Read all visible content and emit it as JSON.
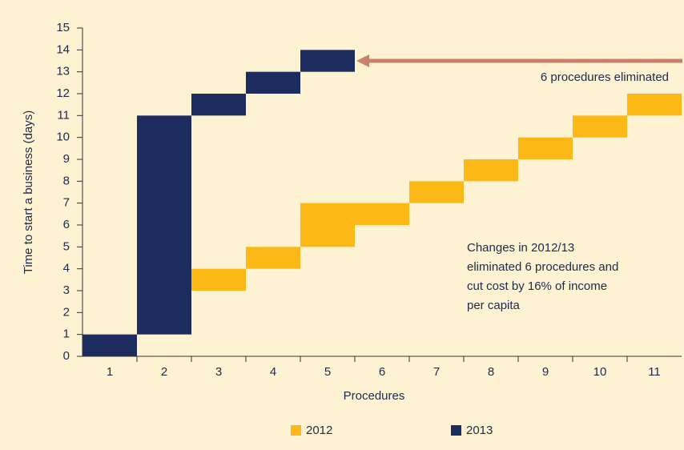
{
  "chart_data": {
    "type": "floating-bar",
    "ylabel": "Time to start a business (days)",
    "xlabel": "Procedures",
    "categories": [
      "1",
      "2",
      "3",
      "4",
      "5",
      "6",
      "7",
      "8",
      "9",
      "10",
      "11"
    ],
    "series": [
      {
        "name": "2012",
        "color": "#fbb817",
        "start": [
          null,
          null,
          3,
          4,
          5,
          6,
          7,
          8,
          9,
          10,
          11
        ],
        "end": [
          null,
          null,
          4,
          5,
          7,
          7,
          8,
          9,
          10,
          11,
          12
        ]
      },
      {
        "name": "2013",
        "color": "#1d2c5e",
        "start": [
          0,
          1,
          11,
          12,
          13,
          null,
          null,
          null,
          null,
          null,
          null
        ],
        "end": [
          1,
          11,
          12,
          13,
          14,
          null,
          null,
          null,
          null,
          null,
          null
        ]
      }
    ],
    "ylim": [
      0,
      15
    ],
    "yticks": [
      0,
      1,
      2,
      3,
      4,
      5,
      6,
      7,
      8,
      9,
      10,
      11,
      12,
      13,
      14,
      15
    ],
    "annotations": [
      "6 procedures eliminated"
    ],
    "note": [
      "Changes in 2012/13",
      "eliminated 6 procedures and",
      "cut cost by 16% of income",
      "per capita"
    ]
  }
}
